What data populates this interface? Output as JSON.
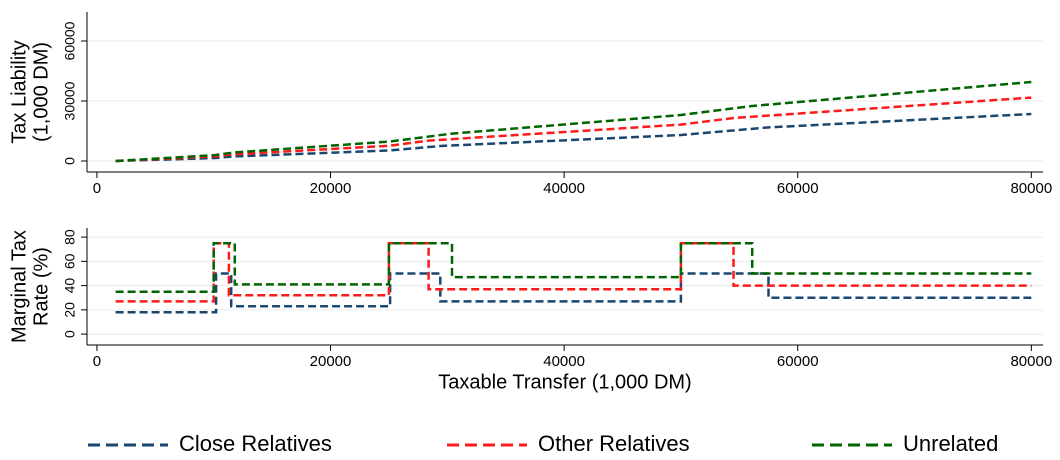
{
  "chart_data": [
    {
      "type": "line",
      "ylabel": [
        "Tax Liability",
        "(1,000 DM)"
      ],
      "xlim": [
        -850,
        81000
      ],
      "xticks": [
        0,
        20000,
        40000,
        60000,
        80000
      ],
      "ylim": [
        -5500,
        74500
      ],
      "yticks": [
        0,
        30000,
        60000
      ],
      "grid": true,
      "legend": "bottom",
      "series": [
        {
          "name": "Close Relatives",
          "color": "#1a476f",
          "x": [
            1600,
            10200,
            11500,
            25100,
            29400,
            50000,
            57500,
            80000
          ],
          "values": [
            0,
            1500,
            2200,
            5300,
            7500,
            13000,
            16800,
            23500
          ]
        },
        {
          "name": "Other Relatives",
          "color": "#ff1a1a",
          "x": [
            1600,
            10000,
            11300,
            25000,
            28400,
            50000,
            54500,
            80000
          ],
          "values": [
            0,
            2300,
            3200,
            7600,
            10200,
            18200,
            21500,
            31700
          ]
        },
        {
          "name": "Unrelated",
          "color": "#006400",
          "x": [
            1600,
            10000,
            11800,
            25000,
            30400,
            50000,
            56100,
            80000
          ],
          "values": [
            0,
            2900,
            4300,
            9700,
            13700,
            23000,
            27500,
            39500
          ]
        }
      ]
    },
    {
      "type": "line",
      "ylabel": [
        "Marginal Tax",
        "Rate (%)"
      ],
      "xlabel": "Taxable Transfer (1,000 DM)",
      "xlim": [
        -850,
        81000
      ],
      "xticks": [
        0,
        20000,
        40000,
        60000,
        80000
      ],
      "ylim": [
        -9,
        87.5
      ],
      "yticks": [
        0,
        20,
        40,
        60,
        80
      ],
      "grid": true,
      "series": [
        {
          "color": "#1a476f",
          "x": [
            1600,
            10200,
            10200,
            11500,
            11500,
            25100,
            25100,
            29400,
            29400,
            50000,
            50000,
            57500,
            57500,
            80000
          ],
          "values": [
            18,
            18,
            50,
            50,
            23,
            23,
            50,
            50,
            27,
            27,
            50,
            50,
            30,
            30
          ]
        },
        {
          "color": "#ff1a1a",
          "x": [
            1600,
            10000,
            10000,
            11300,
            11300,
            25000,
            25000,
            28400,
            28400,
            50000,
            50000,
            54500,
            54500,
            80000
          ],
          "values": [
            27,
            27,
            75,
            75,
            32,
            32,
            75,
            75,
            37,
            37,
            75,
            75,
            40,
            40
          ]
        },
        {
          "color": "#006400",
          "x": [
            1600,
            10000,
            10000,
            11800,
            11800,
            25000,
            25000,
            30400,
            30400,
            50000,
            50000,
            56100,
            56100,
            80000
          ],
          "values": [
            35,
            35,
            75,
            75,
            41,
            41,
            75,
            75,
            47,
            47,
            75,
            75,
            50,
            50
          ]
        }
      ]
    }
  ]
}
